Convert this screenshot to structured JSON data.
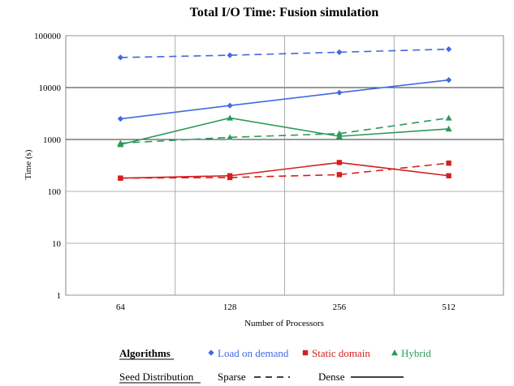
{
  "chart_data": {
    "type": "line",
    "title": "Total I/O Time: Fusion simulation",
    "xlabel": "Number of Processors",
    "ylabel": "Time (s)",
    "yscale": "log",
    "ylim": [
      1,
      100000
    ],
    "yticks": [
      "1",
      "10",
      "100",
      "1000",
      "10000",
      "100000"
    ],
    "categories": [
      "64",
      "128",
      "256",
      "512"
    ],
    "grid": true,
    "legend_position": "bottom",
    "series": [
      {
        "algorithm": "Load on demand",
        "distribution": "Sparse",
        "color": "#4169e1",
        "marker": "diamond",
        "values": [
          38000,
          42000,
          48000,
          55000
        ]
      },
      {
        "algorithm": "Load on demand",
        "distribution": "Dense",
        "color": "#4169e1",
        "marker": "diamond",
        "values": [
          2500,
          4500,
          8000,
          14000
        ]
      },
      {
        "algorithm": "Static domain",
        "distribution": "Sparse",
        "color": "#d42020",
        "marker": "square",
        "values": [
          180,
          185,
          210,
          350
        ]
      },
      {
        "algorithm": "Static domain",
        "distribution": "Dense",
        "color": "#d42020",
        "marker": "square",
        "values": [
          180,
          200,
          360,
          200
        ]
      },
      {
        "algorithm": "Hybrid",
        "distribution": "Sparse",
        "color": "#2e9a5a",
        "marker": "triangle",
        "values": [
          850,
          1100,
          1300,
          2600
        ]
      },
      {
        "algorithm": "Hybrid",
        "distribution": "Dense",
        "color": "#2e9a5a",
        "marker": "triangle",
        "values": [
          800,
          2600,
          1150,
          1600
        ]
      }
    ]
  },
  "legend": {
    "algorithms_heading": "Algorithms",
    "algorithms": [
      {
        "label": "Load on demand",
        "color": "#4169e1",
        "marker": "diamond"
      },
      {
        "label": "Static domain",
        "color": "#d42020",
        "marker": "square"
      },
      {
        "label": "Hybrid",
        "color": "#2e9a5a",
        "marker": "triangle"
      }
    ],
    "distribution_heading": "Seed Distribution",
    "sparse_label": "Sparse",
    "dense_label": "Dense"
  }
}
